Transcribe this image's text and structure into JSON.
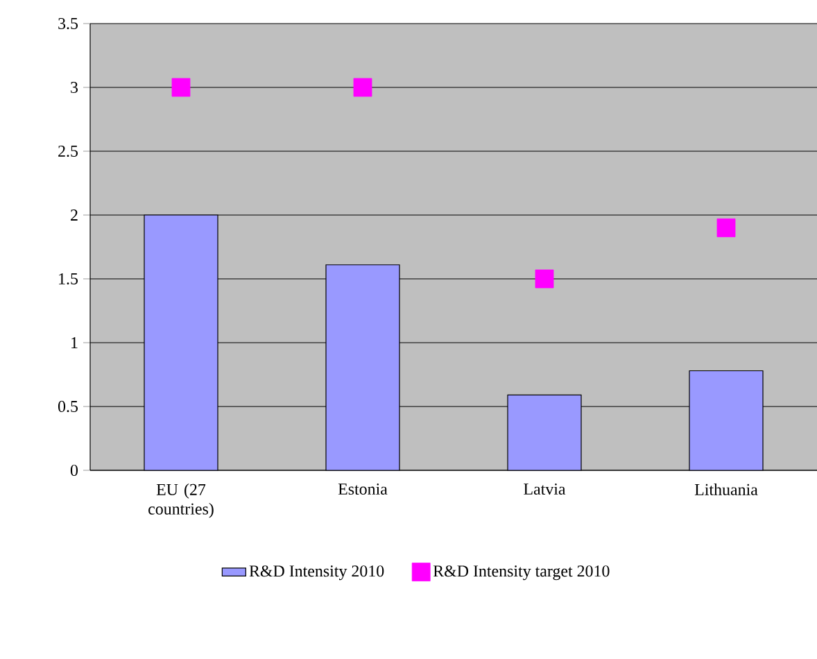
{
  "chart_data": {
    "type": "bar",
    "categories": [
      "EU (27 countries)",
      "Estonia",
      "Latvia",
      "Lithuania"
    ],
    "series": [
      {
        "name": "R&D Intensity 2010",
        "color": "#9999ff",
        "values": [
          2.0,
          1.61,
          0.59,
          0.78
        ]
      },
      {
        "name": "R&D Intensity target 2010",
        "type": "scatter",
        "marker": "square",
        "color": "#ff00ff",
        "values": [
          3.0,
          3.0,
          1.5,
          1.9
        ]
      }
    ],
    "ylim": [
      0,
      3.5
    ],
    "yticks": [
      0,
      0.5,
      1,
      1.5,
      2,
      2.5,
      3,
      3.5
    ],
    "grid": "y",
    "legend": "bottom"
  }
}
